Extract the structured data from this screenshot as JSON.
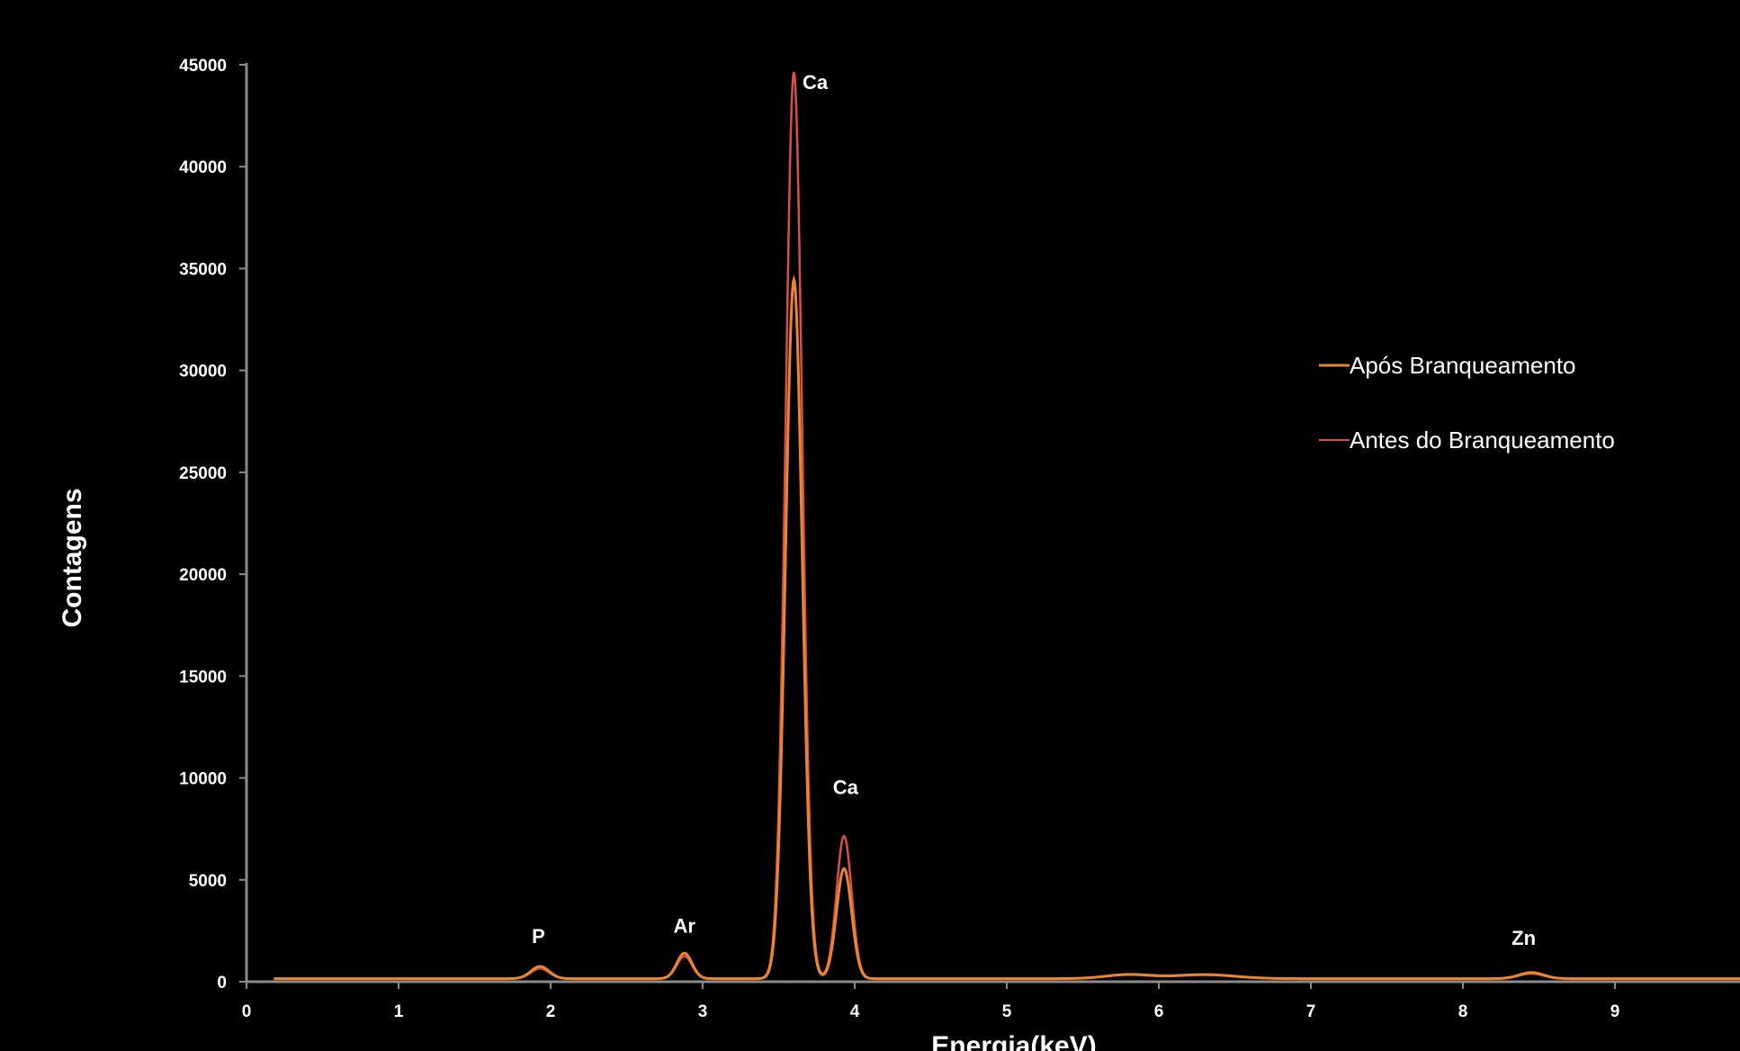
{
  "chart_data": {
    "type": "line",
    "title": "",
    "xlabel": "Energia(keV)",
    "ylabel": "Contagens",
    "xlim": [
      0,
      9.9
    ],
    "ylim": [
      0,
      45000
    ],
    "x_ticks": [
      "0",
      "1",
      "2",
      "3",
      "4",
      "5",
      "6",
      "7",
      "8",
      "9"
    ],
    "y_ticks": [
      "0",
      "5000",
      "10000",
      "15000",
      "20000",
      "25000",
      "30000",
      "35000",
      "40000",
      "45000"
    ],
    "legend_position": "right",
    "grid": false,
    "series": [
      {
        "name": "Após Branqueamento",
        "color": "#e8872f",
        "baseline": 150,
        "peaks": [
          {
            "x": 1.93,
            "y": 600,
            "w": 0.06
          },
          {
            "x": 2.88,
            "y": 1250,
            "w": 0.05
          },
          {
            "x": 3.6,
            "y": 34300,
            "w": 0.055
          },
          {
            "x": 3.93,
            "y": 5400,
            "w": 0.05
          },
          {
            "x": 5.8,
            "y": 200,
            "w": 0.15
          },
          {
            "x": 6.3,
            "y": 200,
            "w": 0.2
          },
          {
            "x": 8.45,
            "y": 300,
            "w": 0.08
          }
        ]
      },
      {
        "name": "Antes do Branqueamento",
        "color": "#d9504a",
        "baseline": 150,
        "peaks": [
          {
            "x": 1.93,
            "y": 500,
            "w": 0.06
          },
          {
            "x": 2.88,
            "y": 1100,
            "w": 0.05
          },
          {
            "x": 3.6,
            "y": 44500,
            "w": 0.055
          },
          {
            "x": 3.93,
            "y": 7000,
            "w": 0.05
          },
          {
            "x": 5.8,
            "y": 180,
            "w": 0.15
          },
          {
            "x": 6.3,
            "y": 180,
            "w": 0.2
          },
          {
            "x": 8.45,
            "y": 250,
            "w": 0.08
          }
        ]
      }
    ],
    "annotations": [
      {
        "label": "P",
        "x": 1.92,
        "y": 1900
      },
      {
        "label": "Ar",
        "x": 2.88,
        "y": 2400
      },
      {
        "label": "Ca",
        "x": 3.74,
        "y": 43800
      },
      {
        "label": "Ca",
        "x": 3.94,
        "y": 9200
      },
      {
        "label": "Zn",
        "x": 8.4,
        "y": 1800
      }
    ]
  }
}
